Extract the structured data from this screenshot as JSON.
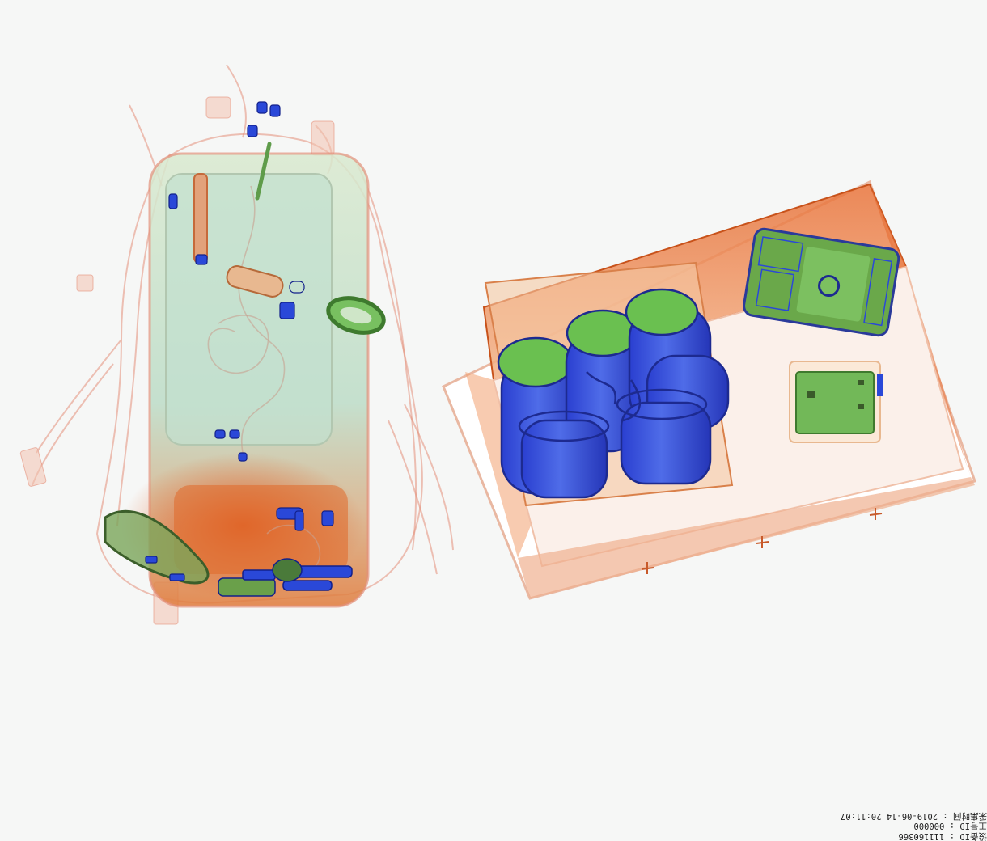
{
  "scan_metadata": {
    "device_id_label": "设备ID",
    "device_id_value": "111160366",
    "operator_id_label": "工号ID",
    "operator_id_value": "000000",
    "capture_time_label": "采集时间",
    "capture_time_value": "2019-06-14 20:11:07"
  },
  "colors": {
    "background": "#f6f7f6",
    "organic": "#e0622a",
    "mixed": "#7cc46a",
    "metal": "#2a48d8",
    "trace": "#e8a08a"
  },
  "objects": {
    "left_item": "backpack",
    "right_item": "tray"
  }
}
